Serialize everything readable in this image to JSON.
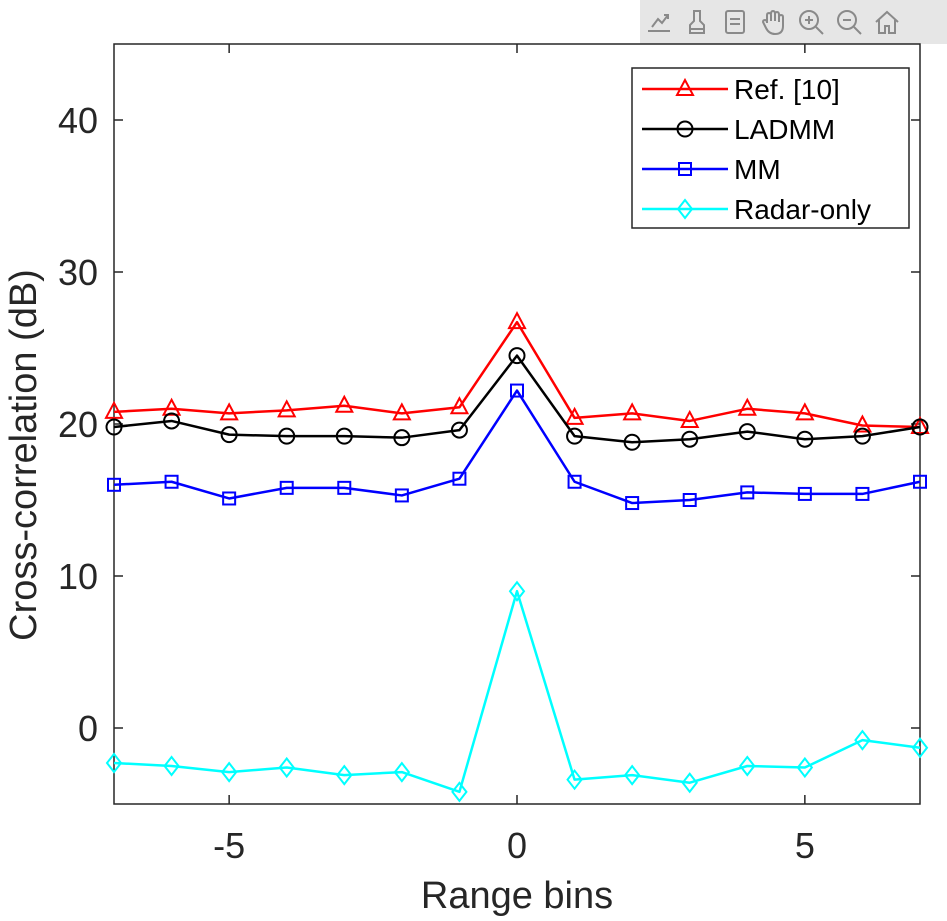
{
  "toolbar": {
    "buttons": [
      {
        "name": "export-icon",
        "label": "Export"
      },
      {
        "name": "brush-icon",
        "label": "Brush"
      },
      {
        "name": "datatip-icon",
        "label": "Data tips"
      },
      {
        "name": "pan-icon",
        "label": "Pan"
      },
      {
        "name": "zoom-in-icon",
        "label": "Zoom in"
      },
      {
        "name": "zoom-out-icon",
        "label": "Zoom out"
      },
      {
        "name": "home-icon",
        "label": "Restore view"
      }
    ]
  },
  "chart_data": {
    "type": "line",
    "title": "",
    "xlabel": "Range bins",
    "ylabel": "Cross-correlation (dB)",
    "xlim": [
      -7,
      7
    ],
    "ylim": [
      -5,
      45
    ],
    "xticks": [
      -5,
      0,
      5
    ],
    "yticks": [
      0,
      10,
      20,
      30,
      40
    ],
    "grid": false,
    "legend_position": "top-right",
    "x": [
      -7,
      -6,
      -5,
      -4,
      -3,
      -2,
      -1,
      0,
      1,
      2,
      3,
      4,
      5,
      6,
      7
    ],
    "series": [
      {
        "name": "Ref. [10]",
        "color": "#ff0000",
        "marker": "triangle",
        "values": [
          20.8,
          21.0,
          20.7,
          20.9,
          21.2,
          20.7,
          21.1,
          26.7,
          20.4,
          20.7,
          20.2,
          21.0,
          20.7,
          19.9,
          19.8
        ]
      },
      {
        "name": "LADMM",
        "color": "#000000",
        "marker": "circle",
        "values": [
          19.8,
          20.2,
          19.3,
          19.2,
          19.2,
          19.1,
          19.6,
          24.5,
          19.2,
          18.8,
          19.0,
          19.5,
          19.0,
          19.2,
          19.8
        ]
      },
      {
        "name": "MM",
        "color": "#0000ff",
        "marker": "square",
        "values": [
          16.0,
          16.2,
          15.1,
          15.8,
          15.8,
          15.3,
          16.4,
          22.2,
          16.2,
          14.8,
          15.0,
          15.5,
          15.4,
          15.4,
          16.2
        ]
      },
      {
        "name": "Radar-only",
        "color": "#00ffff",
        "marker": "diamond",
        "values": [
          -2.3,
          -2.5,
          -2.9,
          -2.6,
          -3.1,
          -2.9,
          -4.2,
          9.0,
          -3.4,
          -3.1,
          -3.6,
          -2.5,
          -2.6,
          -0.8,
          -1.3
        ]
      }
    ]
  }
}
